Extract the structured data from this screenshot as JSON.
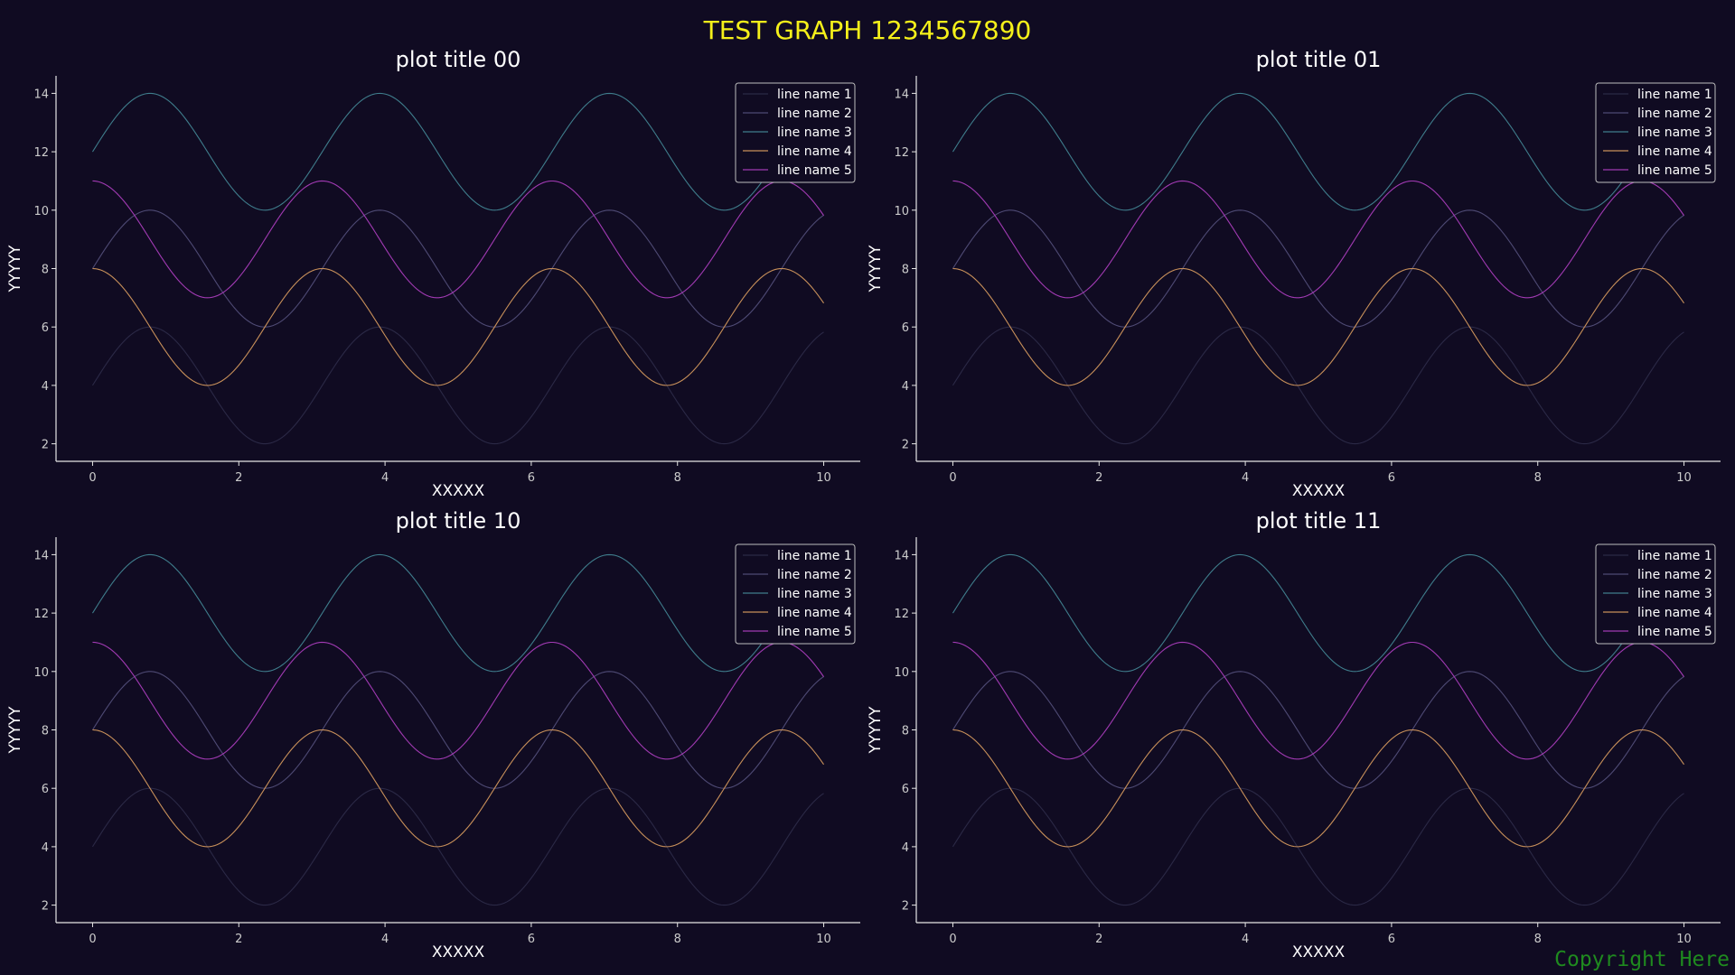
{
  "figure": {
    "suptitle": "TEST GRAPH 1234567890",
    "copyright": "Copyright Here"
  },
  "colors": {
    "background": "#100b22",
    "axis": "#e6e6e6",
    "tick_label": "#cccccc",
    "suptitle": "#f5f01a",
    "copyright": "#1f8a1f"
  },
  "chart_data": [
    {
      "type": "line",
      "title": "plot title 00",
      "xlabel": "XXXXX",
      "ylabel": "YYYYY",
      "xlim": [
        -0.5,
        10.5
      ],
      "ylim": [
        1.4,
        14.6
      ],
      "xticks": [
        0,
        2,
        4,
        6,
        8,
        10
      ],
      "yticks": [
        2,
        4,
        6,
        8,
        10,
        12,
        14
      ],
      "grid": false,
      "legend": "top-right",
      "series": [
        {
          "name": "line name 1",
          "color": "#2b2946",
          "function": "4 + 2*sin(2x)"
        },
        {
          "name": "line name 2",
          "color": "#4e4a74",
          "function": "8 + 2*sin(2x)"
        },
        {
          "name": "line name 3",
          "color": "#3f7d8c",
          "function": "12 + 2*sin(2x)"
        },
        {
          "name": "line name 4",
          "color": "#c8905a",
          "function": "6 + 2*cos(2x)"
        },
        {
          "name": "line name 5",
          "color": "#a13ab3",
          "function": "9 + 2*cos(2x)"
        }
      ]
    },
    {
      "type": "line",
      "title": "plot title 01",
      "xlabel": "XXXXX",
      "ylabel": "YYYYY",
      "xlim": [
        -0.5,
        10.5
      ],
      "ylim": [
        1.4,
        14.6
      ],
      "xticks": [
        0,
        2,
        4,
        6,
        8,
        10
      ],
      "yticks": [
        2,
        4,
        6,
        8,
        10,
        12,
        14
      ],
      "grid": false,
      "legend": "top-right",
      "series": [
        {
          "name": "line name 1",
          "color": "#2b2946",
          "function": "4 + 2*sin(2x)"
        },
        {
          "name": "line name 2",
          "color": "#4e4a74",
          "function": "8 + 2*sin(2x)"
        },
        {
          "name": "line name 3",
          "color": "#3f7d8c",
          "function": "12 + 2*sin(2x)"
        },
        {
          "name": "line name 4",
          "color": "#c8905a",
          "function": "6 + 2*cos(2x)"
        },
        {
          "name": "line name 5",
          "color": "#a13ab3",
          "function": "9 + 2*cos(2x)"
        }
      ]
    },
    {
      "type": "line",
      "title": "plot title 10",
      "xlabel": "XXXXX",
      "ylabel": "YYYYY",
      "xlim": [
        -0.5,
        10.5
      ],
      "ylim": [
        1.4,
        14.6
      ],
      "xticks": [
        0,
        2,
        4,
        6,
        8,
        10
      ],
      "yticks": [
        2,
        4,
        6,
        8,
        10,
        12,
        14
      ],
      "grid": false,
      "legend": "top-right",
      "series": [
        {
          "name": "line name 1",
          "color": "#2b2946",
          "function": "4 + 2*sin(2x)"
        },
        {
          "name": "line name 2",
          "color": "#4e4a74",
          "function": "8 + 2*sin(2x)"
        },
        {
          "name": "line name 3",
          "color": "#3f7d8c",
          "function": "12 + 2*sin(2x)"
        },
        {
          "name": "line name 4",
          "color": "#c8905a",
          "function": "6 + 2*cos(2x)"
        },
        {
          "name": "line name 5",
          "color": "#a13ab3",
          "function": "9 + 2*cos(2x)"
        }
      ]
    },
    {
      "type": "line",
      "title": "plot title 11",
      "xlabel": "XXXXX",
      "ylabel": "YYYYY",
      "xlim": [
        -0.5,
        10.5
      ],
      "ylim": [
        1.4,
        14.6
      ],
      "xticks": [
        0,
        2,
        4,
        6,
        8,
        10
      ],
      "yticks": [
        2,
        4,
        6,
        8,
        10,
        12,
        14
      ],
      "grid": false,
      "legend": "top-right",
      "series": [
        {
          "name": "line name 1",
          "color": "#2b2946",
          "function": "4 + 2*sin(2x)"
        },
        {
          "name": "line name 2",
          "color": "#4e4a74",
          "function": "8 + 2*sin(2x)"
        },
        {
          "name": "line name 3",
          "color": "#3f7d8c",
          "function": "12 + 2*sin(2x)"
        },
        {
          "name": "line name 4",
          "color": "#c8905a",
          "function": "6 + 2*cos(2x)"
        },
        {
          "name": "line name 5",
          "color": "#a13ab3",
          "function": "9 + 2*cos(2x)"
        }
      ]
    }
  ]
}
